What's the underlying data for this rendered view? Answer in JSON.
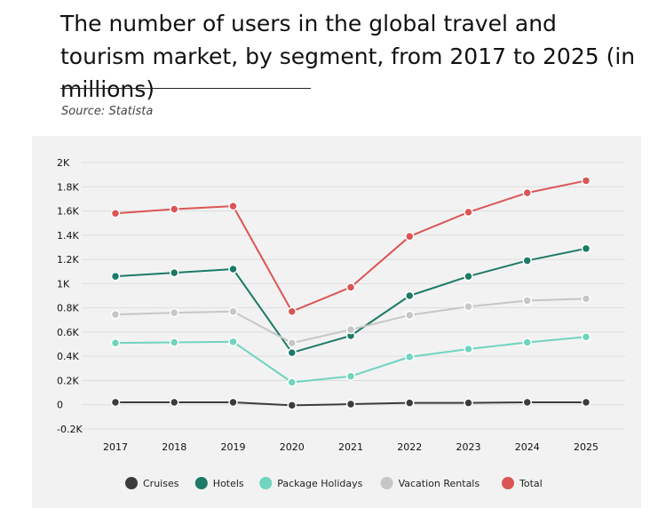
{
  "title": "The number of users in the global travel and tourism market, by segment, from 2017 to 2025 (in millions)",
  "source": "Source: Statista",
  "chart_data": {
    "type": "line",
    "x": [
      "2017",
      "2018",
      "2019",
      "2020",
      "2021",
      "2022",
      "2023",
      "2024",
      "2025"
    ],
    "ylim": [
      -200,
      2000
    ],
    "y_ticks": [
      {
        "value": 2000,
        "label": "2K"
      },
      {
        "value": 1800,
        "label": "1.8K"
      },
      {
        "value": 1600,
        "label": "1.6K"
      },
      {
        "value": 1400,
        "label": "1.4K"
      },
      {
        "value": 1200,
        "label": "1.2K"
      },
      {
        "value": 1000,
        "label": "1K"
      },
      {
        "value": 800,
        "label": "0.8K"
      },
      {
        "value": 600,
        "label": "0.6K"
      },
      {
        "value": 400,
        "label": "0.4K"
      },
      {
        "value": 200,
        "label": "0.2K"
      },
      {
        "value": 0,
        "label": "0"
      },
      {
        "value": -200,
        "label": "-0.2K"
      }
    ],
    "grid": true,
    "legend_position": "bottom",
    "series": [
      {
        "name": "Cruises",
        "color": "#3c3c3c",
        "values": [
          20,
          20,
          20,
          -5,
          5,
          15,
          15,
          20,
          20
        ]
      },
      {
        "name": "Hotels",
        "color": "#1c7a66",
        "values": [
          1060,
          1090,
          1120,
          430,
          570,
          900,
          1060,
          1190,
          1290
        ]
      },
      {
        "name": "Package Holidays",
        "color": "#6fd4c0",
        "values": [
          510,
          515,
          520,
          185,
          235,
          395,
          460,
          515,
          560
        ]
      },
      {
        "name": "Vacation Rentals",
        "color": "#c6c6c6",
        "values": [
          745,
          760,
          770,
          510,
          620,
          740,
          810,
          860,
          875
        ]
      },
      {
        "name": "Total",
        "color": "#dc5555",
        "values": [
          1580,
          1615,
          1640,
          770,
          970,
          1390,
          1590,
          1750,
          1850
        ]
      }
    ]
  }
}
